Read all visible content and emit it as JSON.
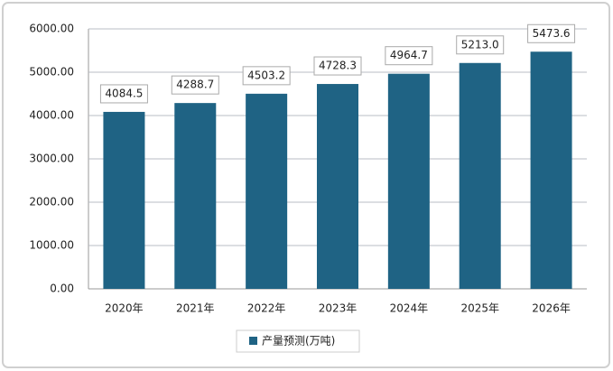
{
  "chart_data": {
    "type": "bar",
    "categories": [
      "2020年",
      "2021年",
      "2022年",
      "2023年",
      "2024年",
      "2025年",
      "2026年"
    ],
    "series": [
      {
        "name": "产量预测(万吨)",
        "color": "#1f6384",
        "values": [
          4084.5,
          4288.7,
          4503.2,
          4728.3,
          4964.7,
          5213.0,
          5473.6
        ],
        "value_labels": [
          "4084.5",
          "4288.7",
          "4503.2",
          "4728.3",
          "4964.7",
          "5213.0",
          "5473.6"
        ]
      }
    ],
    "ylim": [
      0,
      6000
    ],
    "yticks": [
      {
        "value": 0,
        "label": "0.00"
      },
      {
        "value": 1000,
        "label": "1000.00"
      },
      {
        "value": 2000,
        "label": "2000.00"
      },
      {
        "value": 3000,
        "label": "3000.00"
      },
      {
        "value": 4000,
        "label": "4000.00"
      },
      {
        "value": 5000,
        "label": "5000.00"
      },
      {
        "value": 6000,
        "label": "6000.00"
      }
    ],
    "grid": true
  }
}
